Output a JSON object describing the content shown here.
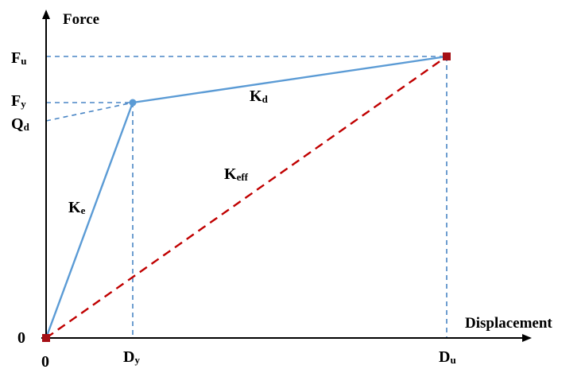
{
  "axes": {
    "y_title": "Force",
    "x_title": "Displacement",
    "origin_y": "0",
    "origin_x": "0"
  },
  "y_ticks": {
    "fu": {
      "main": "F",
      "sub": "u"
    },
    "fy": {
      "main": "F",
      "sub": "y"
    },
    "qd": {
      "main": "Q",
      "sub": "d"
    }
  },
  "x_ticks": {
    "dy": {
      "main": "D",
      "sub": "y"
    },
    "du": {
      "main": "D",
      "sub": "u"
    }
  },
  "line_labels": {
    "kd": {
      "main": "K",
      "sub": "d"
    },
    "ke": {
      "main": "K",
      "sub": "e"
    },
    "keff": {
      "main": "K",
      "sub": "eff"
    }
  },
  "colors": {
    "axis": "#000000",
    "curve": "#5b9bd5",
    "guide": "#4a86c5",
    "secant": "#c00000",
    "point_marker": "#a50f15",
    "yield_marker": "#5b9bd5"
  }
}
